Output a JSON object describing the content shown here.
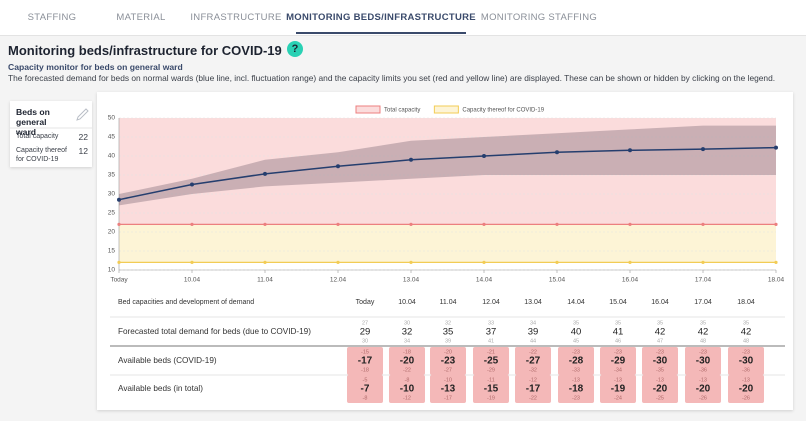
{
  "tabs": [
    "STAFFING",
    "MATERIAL",
    "INFRASTRUCTURE",
    "MONITORING BEDS/INFRASTRUCTURE",
    "MONITORING STAFFING"
  ],
  "active_tab": 3,
  "header": {
    "title": "Monitoring beds/infrastructure for COVID-19",
    "help": "?",
    "subtitle": "Capacity monitor for beds on general ward",
    "description": "The forecasted demand for beds on normal wards (blue line, incl. fluctuation range) and the capacity limits you set (red and yellow line) are displayed. These can be shown or hidden by clicking on the legend."
  },
  "card": {
    "title": "Beds on general ward",
    "rows": [
      {
        "label": "Total capacity",
        "value": 22
      },
      {
        "label": "Capacity thereof for COVID-19",
        "value": 12
      }
    ]
  },
  "chart_data": {
    "type": "line",
    "categories": [
      "Today",
      "10.04",
      "11.04",
      "12.04",
      "13.04",
      "14.04",
      "15.04",
      "16.04",
      "17.04",
      "18.04"
    ],
    "ylim": [
      10,
      50
    ],
    "yticks": [
      10,
      15,
      20,
      25,
      30,
      35,
      40,
      45,
      50
    ],
    "grid": true,
    "series": [
      {
        "color": "#253e6e",
        "values": [
          28.5,
          32.5,
          35.3,
          37.3,
          39,
          40,
          41,
          41.5,
          41.8,
          42.2
        ],
        "lower": [
          27,
          30,
          32,
          33,
          34,
          35,
          35,
          35,
          35,
          35
        ],
        "upper": [
          30,
          34,
          39,
          41,
          44,
          45,
          46,
          47,
          48,
          48
        ]
      },
      {
        "name": "Total capacity",
        "color": "#ec7f7f",
        "fill": "#fbdcdc",
        "values": [
          22,
          22,
          22,
          22,
          22,
          22,
          22,
          22,
          22,
          22
        ]
      },
      {
        "name": "Capacity thereof for COVID-19",
        "color": "#f2cc55",
        "fill": "#fdf4d6",
        "values": [
          12,
          12,
          12,
          12,
          12,
          12,
          12,
          12,
          12,
          12
        ]
      }
    ]
  },
  "table": {
    "header": "Bed capacities and development of demand",
    "columns": [
      "Today",
      "10.04",
      "11.04",
      "12.04",
      "13.04",
      "14.04",
      "15.04",
      "16.04",
      "17.04",
      "18.04"
    ],
    "rows": [
      {
        "label": "Forecasted total demand for beds (due to COVID-19)",
        "values": [
          29,
          32,
          35,
          37,
          39,
          40,
          41,
          42,
          42,
          42
        ],
        "top": [
          27,
          30,
          32,
          33,
          34,
          35,
          35,
          35,
          35,
          35
        ],
        "bottom": [
          30,
          34,
          39,
          41,
          44,
          45,
          46,
          47,
          48,
          48
        ]
      },
      {
        "label": "Available beds (COVID-19)",
        "values": [
          -17,
          -20,
          -23,
          -25,
          -27,
          -28,
          -29,
          -30,
          -30,
          -30
        ],
        "top": [
          -15,
          -18,
          -20,
          -21,
          -22,
          -23,
          -23,
          -23,
          -23,
          -23
        ],
        "bottom": [
          -18,
          -22,
          -27,
          -29,
          -32,
          -33,
          -34,
          -35,
          -36,
          -36
        ]
      },
      {
        "label": "Available beds (in total)",
        "values": [
          -7,
          -10,
          -13,
          -15,
          -17,
          -18,
          -19,
          -20,
          -20,
          -20
        ],
        "top": [
          -5,
          -8,
          -10,
          -11,
          -12,
          -13,
          -13,
          -13,
          -13,
          -13
        ],
        "bottom": [
          -8,
          -12,
          -17,
          -19,
          -22,
          -23,
          -24,
          -25,
          -26,
          -26
        ]
      }
    ]
  }
}
